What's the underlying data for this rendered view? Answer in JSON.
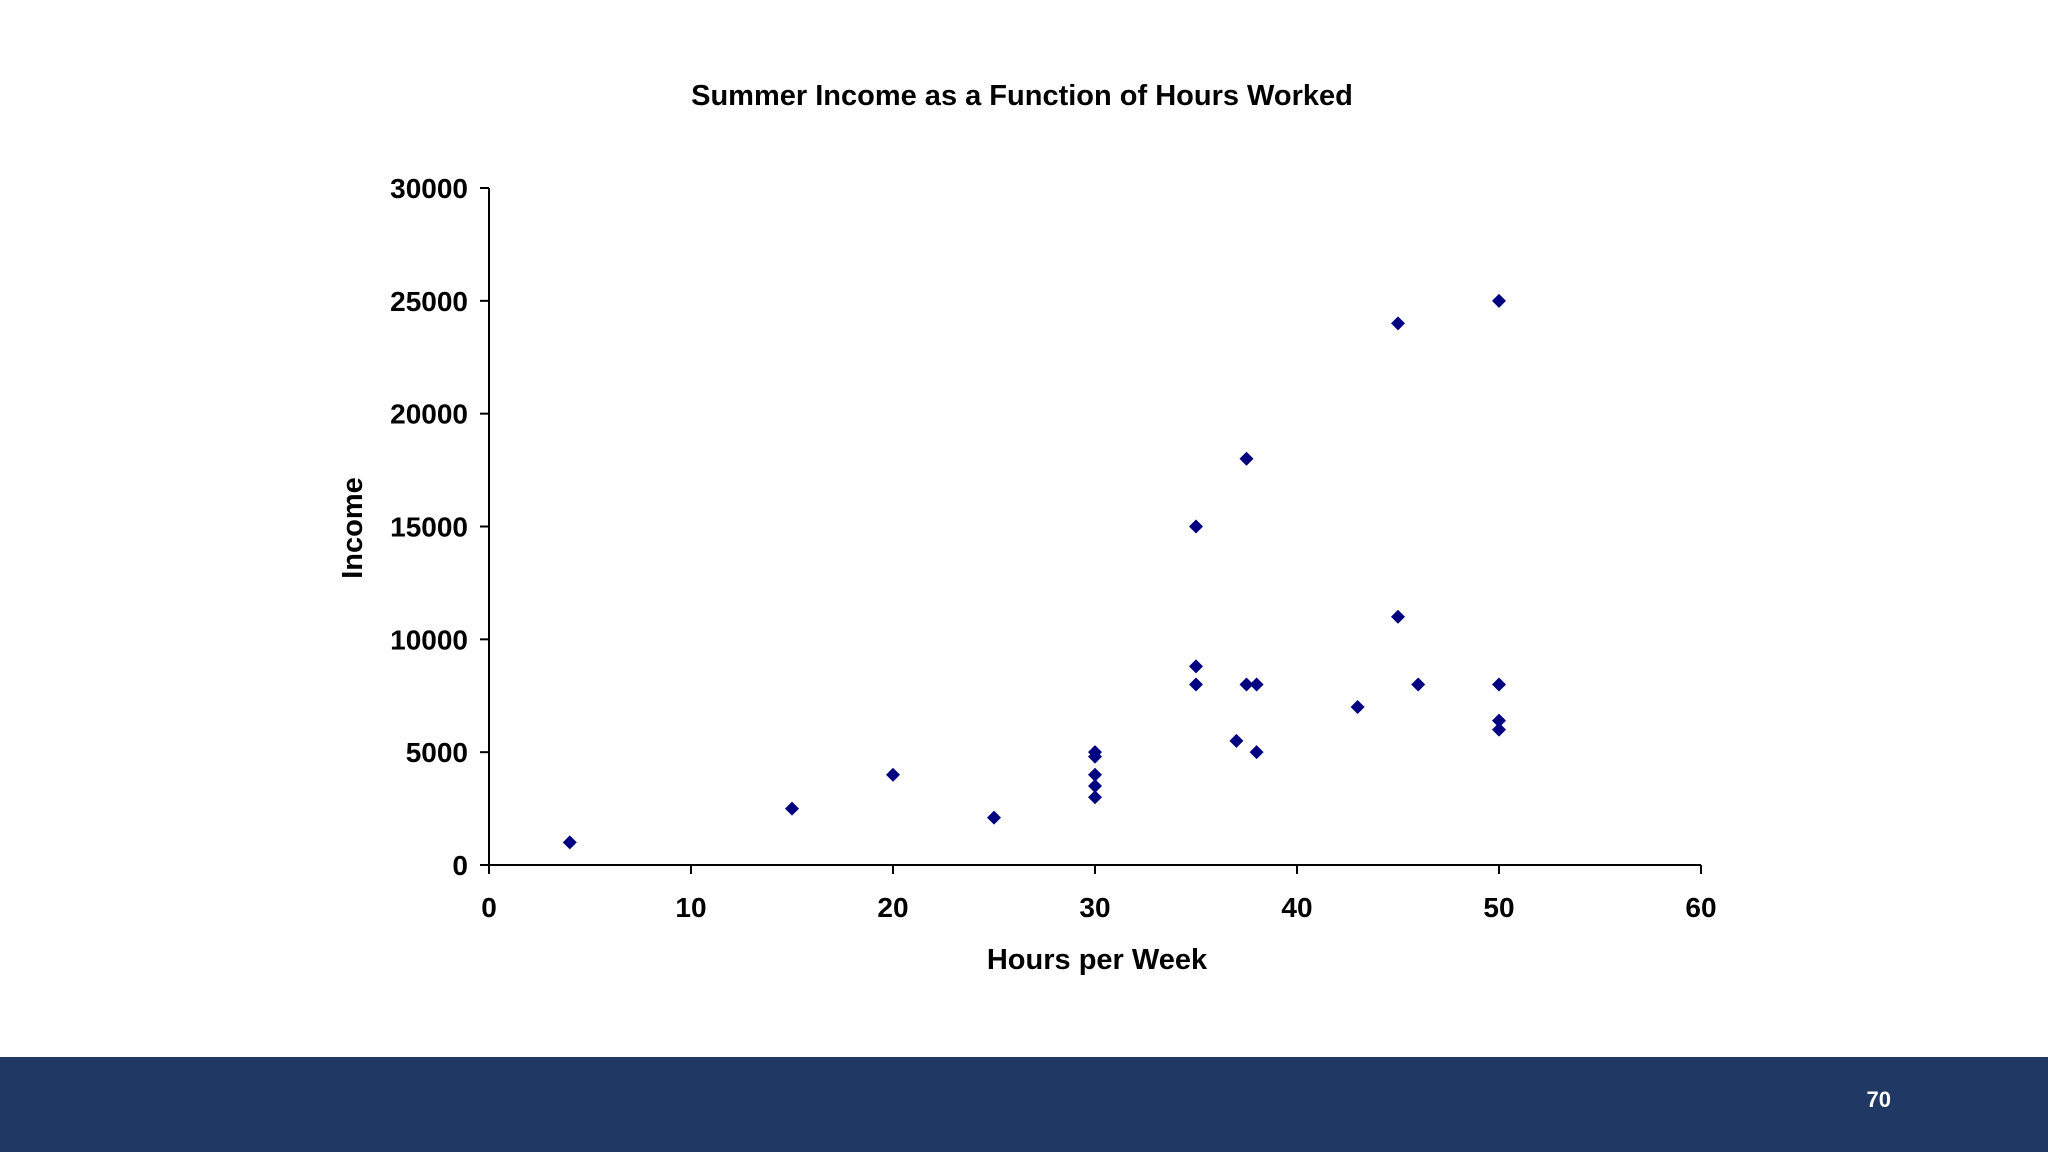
{
  "slide": {
    "page_number": "70",
    "footer_color": "#203864"
  },
  "chart_data": {
    "type": "scatter",
    "title": "Summer Income as a Function of Hours Worked",
    "xlabel": "Hours per Week",
    "ylabel": "Income",
    "xlim": [
      0,
      60
    ],
    "ylim": [
      0,
      30000
    ],
    "x_ticks": [
      0,
      10,
      20,
      30,
      40,
      50,
      60
    ],
    "y_ticks": [
      0,
      5000,
      10000,
      15000,
      20000,
      25000,
      30000
    ],
    "grid": false,
    "legend": "none",
    "marker": "diamond",
    "marker_color": "#000080",
    "points": [
      {
        "x": 4,
        "y": 1000
      },
      {
        "x": 15,
        "y": 2500
      },
      {
        "x": 20,
        "y": 4000
      },
      {
        "x": 25,
        "y": 2100
      },
      {
        "x": 30,
        "y": 3000
      },
      {
        "x": 30,
        "y": 3500
      },
      {
        "x": 30,
        "y": 4000
      },
      {
        "x": 30,
        "y": 4800
      },
      {
        "x": 30,
        "y": 5000
      },
      {
        "x": 35,
        "y": 8000
      },
      {
        "x": 35,
        "y": 8800
      },
      {
        "x": 35,
        "y": 15000
      },
      {
        "x": 37,
        "y": 5500
      },
      {
        "x": 37.5,
        "y": 8000
      },
      {
        "x": 37.5,
        "y": 18000
      },
      {
        "x": 38,
        "y": 5000
      },
      {
        "x": 38,
        "y": 8000
      },
      {
        "x": 43,
        "y": 7000
      },
      {
        "x": 45,
        "y": 11000
      },
      {
        "x": 45,
        "y": 24000
      },
      {
        "x": 46,
        "y": 8000
      },
      {
        "x": 50,
        "y": 6000
      },
      {
        "x": 50,
        "y": 6400
      },
      {
        "x": 50,
        "y": 8000
      },
      {
        "x": 50,
        "y": 25000
      }
    ]
  }
}
